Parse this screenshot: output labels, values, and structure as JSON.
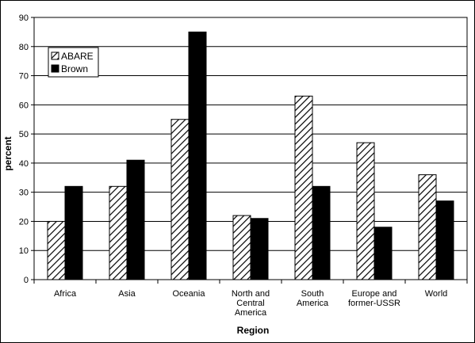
{
  "chart_data": {
    "type": "bar",
    "xlabel": "Region",
    "ylabel": "percent",
    "ylim": [
      0,
      90
    ],
    "yticks": [
      0,
      10,
      20,
      30,
      40,
      50,
      60,
      70,
      80,
      90
    ],
    "grid": true,
    "legend": "top-left",
    "categories": [
      [
        "Africa"
      ],
      [
        "Asia"
      ],
      [
        "Oceania"
      ],
      [
        "North and",
        "Central",
        "America"
      ],
      [
        "South",
        "America"
      ],
      [
        "Europe and",
        "former-USSR"
      ],
      [
        "World"
      ]
    ],
    "series": [
      {
        "name": "ABARE",
        "values": [
          20,
          32,
          55,
          22,
          63,
          47,
          36
        ],
        "fill": "hatched"
      },
      {
        "name": "Brown",
        "values": [
          32,
          41,
          85,
          21,
          32,
          18,
          27
        ],
        "fill": "#000000"
      }
    ]
  }
}
